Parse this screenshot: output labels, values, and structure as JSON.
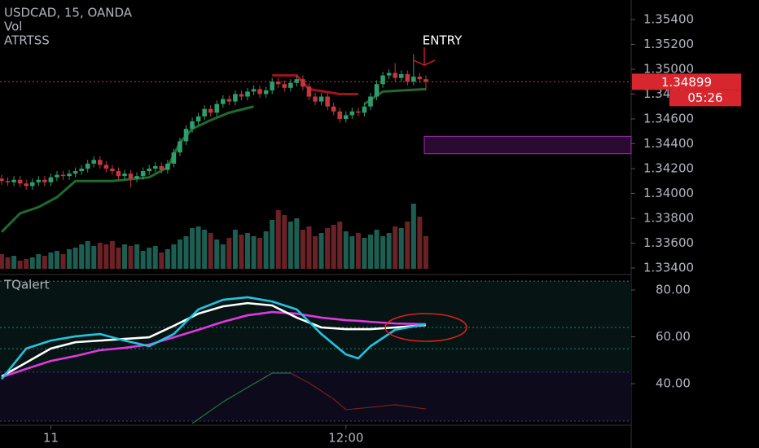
{
  "header": {
    "symbol": "USDCAD, 15, OANDA",
    "vol": "Vol",
    "atr": "ATRTSS"
  },
  "chart_data": [
    {
      "type": "candlestick",
      "annotation": "ENTRY",
      "open": [
        1.3412,
        1.341,
        1.3409,
        1.3411,
        1.3408,
        1.3406,
        1.3409,
        1.3411,
        1.3409,
        1.3413,
        1.3415,
        1.3414,
        1.3416,
        1.3418,
        1.342,
        1.3424,
        1.3427,
        1.3423,
        1.342,
        1.3418,
        1.3414,
        1.3416,
        1.3412,
        1.3414,
        1.3418,
        1.342,
        1.3422,
        1.3419,
        1.3424,
        1.3433,
        1.3442,
        1.3452,
        1.3458,
        1.3462,
        1.3468,
        1.3465,
        1.3472,
        1.3476,
        1.3474,
        1.348,
        1.3478,
        1.3482,
        1.3484,
        1.348,
        1.3483,
        1.349,
        1.3488,
        1.3485,
        1.3489,
        1.3492,
        1.3486,
        1.3478,
        1.3474,
        1.3478,
        1.347,
        1.3466,
        1.346,
        1.3463,
        1.3466,
        1.3465,
        1.347,
        1.3478,
        1.3488,
        1.3495,
        1.3497,
        1.3493,
        1.3496,
        1.349,
        1.3494,
        1.3492
      ],
      "high": [
        1.3415,
        1.3413,
        1.3414,
        1.3414,
        1.3411,
        1.3412,
        1.3414,
        1.3414,
        1.3416,
        1.3418,
        1.3418,
        1.3419,
        1.3421,
        1.3423,
        1.3427,
        1.343,
        1.343,
        1.3426,
        1.3423,
        1.3421,
        1.3419,
        1.3419,
        1.3417,
        1.3421,
        1.3423,
        1.3425,
        1.3425,
        1.3427,
        1.3436,
        1.3445,
        1.3455,
        1.3461,
        1.3465,
        1.3471,
        1.3471,
        1.3475,
        1.3479,
        1.3479,
        1.3483,
        1.3483,
        1.3485,
        1.3487,
        1.3487,
        1.3486,
        1.3493,
        1.3493,
        1.3491,
        1.3492,
        1.3495,
        1.3495,
        1.3489,
        1.3481,
        1.3481,
        1.3481,
        1.3473,
        1.3469,
        1.3466,
        1.3469,
        1.3469,
        1.3473,
        1.3481,
        1.3491,
        1.3498,
        1.35,
        1.3505,
        1.3499,
        1.3499,
        1.3512,
        1.3497,
        1.3495
      ],
      "low": [
        1.3407,
        1.3406,
        1.3406,
        1.3405,
        1.3403,
        1.3403,
        1.3406,
        1.3406,
        1.3406,
        1.341,
        1.3411,
        1.3411,
        1.3413,
        1.3415,
        1.3417,
        1.3421,
        1.342,
        1.3417,
        1.3415,
        1.3411,
        1.3411,
        1.3405,
        1.3409,
        1.3411,
        1.3415,
        1.3417,
        1.3416,
        1.3416,
        1.3421,
        1.343,
        1.3439,
        1.3449,
        1.3455,
        1.3459,
        1.3462,
        1.3462,
        1.3469,
        1.3471,
        1.3471,
        1.3475,
        1.3475,
        1.3479,
        1.3477,
        1.3477,
        1.348,
        1.3485,
        1.3482,
        1.3482,
        1.3486,
        1.3483,
        1.3475,
        1.3471,
        1.3471,
        1.3467,
        1.3463,
        1.3457,
        1.3457,
        1.346,
        1.3462,
        1.3462,
        1.3467,
        1.3475,
        1.3485,
        1.3492,
        1.349,
        1.349,
        1.3487,
        1.3487,
        1.3489,
        1.3483
      ],
      "close": [
        1.341,
        1.3409,
        1.3411,
        1.3408,
        1.3406,
        1.3409,
        1.3411,
        1.3409,
        1.3413,
        1.3415,
        1.3414,
        1.3416,
        1.3418,
        1.342,
        1.3424,
        1.3427,
        1.3423,
        1.342,
        1.3418,
        1.3414,
        1.3416,
        1.3412,
        1.3414,
        1.3418,
        1.342,
        1.3422,
        1.3419,
        1.3424,
        1.3433,
        1.3442,
        1.3452,
        1.3458,
        1.3462,
        1.3468,
        1.3465,
        1.3472,
        1.3476,
        1.3474,
        1.348,
        1.3478,
        1.3482,
        1.3484,
        1.348,
        1.3483,
        1.349,
        1.3488,
        1.3485,
        1.3489,
        1.3492,
        1.3486,
        1.3478,
        1.3474,
        1.3478,
        1.347,
        1.3466,
        1.346,
        1.3463,
        1.3466,
        1.3465,
        1.347,
        1.3478,
        1.3488,
        1.3495,
        1.3497,
        1.3493,
        1.3496,
        1.349,
        1.3494,
        1.3492,
        1.34899
      ],
      "up_color": "#2e9e6e",
      "down_color": "#c2383d",
      "ylim": [
        1.33361,
        1.35557
      ],
      "yticks": [
        {
          "value": 1.354,
          "label": "1.35400"
        },
        {
          "value": 1.352,
          "label": "1.35200"
        },
        {
          "value": 1.35,
          "label": "1.35000"
        },
        {
          "value": 1.348,
          "label": "1.34800"
        },
        {
          "value": 1.346,
          "label": "1.34600"
        },
        {
          "value": 1.344,
          "label": "1.34400"
        },
        {
          "value": 1.342,
          "label": "1.34200"
        },
        {
          "value": 1.34,
          "label": "1.34000"
        },
        {
          "value": 1.338,
          "label": "1.33800"
        },
        {
          "value": 1.336,
          "label": "1.33600"
        },
        {
          "value": 1.334,
          "label": "1.33400"
        }
      ],
      "xticks": [
        {
          "value": 8,
          "label": "11"
        },
        {
          "value": 56,
          "label": "12:00"
        }
      ],
      "last_price": 1.34899,
      "countdown": "05:26",
      "zone": [
        1.3432,
        1.3446
      ],
      "volume": {
        "values": [
          18,
          14,
          16,
          10,
          12,
          14,
          18,
          16,
          20,
          22,
          18,
          24,
          26,
          30,
          34,
          28,
          32,
          30,
          34,
          26,
          30,
          28,
          30,
          22,
          26,
          28,
          20,
          24,
          30,
          36,
          40,
          50,
          52,
          48,
          44,
          36,
          30,
          38,
          48,
          42,
          44,
          40,
          38,
          46,
          60,
          72,
          66,
          58,
          62,
          48,
          52,
          40,
          44,
          50,
          54,
          58,
          46,
          40,
          44,
          38,
          42,
          48,
          40,
          44,
          52,
          50,
          58,
          80,
          64,
          40
        ],
        "ylim": [
          0,
          100
        ]
      },
      "atr": {
        "x": [
          0,
          3,
          6,
          9,
          12,
          18,
          24,
          27,
          29,
          31,
          34,
          37,
          41,
          44,
          48,
          50,
          55,
          58,
          59,
          62,
          69
        ],
        "series": [
          {
            "color": "#1f6b2c",
            "values": [
              1.3369,
              1.3384,
              1.3389,
              1.3397,
              1.341,
              1.341,
              1.3413,
              1.3421,
              1.3441,
              1.3452,
              1.3459,
              1.3465,
              1.347,
              null,
              null,
              null,
              null,
              null,
              1.3472,
              1.3482,
              1.3484
            ]
          },
          {
            "color": "#a3131c",
            "values": [
              null,
              null,
              null,
              null,
              null,
              null,
              null,
              null,
              null,
              null,
              null,
              null,
              null,
              1.3495,
              1.3495,
              1.3484,
              1.348,
              1.348,
              null,
              null,
              null
            ]
          }
        ]
      }
    },
    {
      "type": "line",
      "title": "TQalert",
      "x": [
        0,
        4,
        8,
        12,
        16,
        20,
        24,
        28,
        32,
        36,
        40,
        44,
        48,
        52,
        56,
        58,
        60,
        64,
        69
      ],
      "series": [
        {
          "color": "#e236e2",
          "values": [
            42.8,
            46.3,
            49.7,
            51.8,
            54.3,
            55.3,
            56.7,
            59.8,
            63,
            66.4,
            69.2,
            70.6,
            69.9,
            68.2,
            67.1,
            66.8,
            66.4,
            65.7,
            65.4
          ]
        },
        {
          "color": "#ffffff",
          "values": [
            43.1,
            49,
            55,
            57.7,
            58.4,
            59.1,
            59.8,
            64.7,
            69.9,
            73,
            74.4,
            73.4,
            68.2,
            64,
            63.3,
            63.3,
            63.3,
            64,
            65
          ]
        },
        {
          "color": "#22c4de",
          "values": [
            42,
            55,
            58.4,
            60.2,
            61.2,
            58.4,
            56,
            61.2,
            71.7,
            75.8,
            76.9,
            75.1,
            71.7,
            61.2,
            52.5,
            50.8,
            56,
            63,
            65.4
          ]
        }
      ],
      "hist_x": [
        31,
        36,
        40,
        44,
        47,
        50,
        54,
        56,
        60,
        64,
        69
      ],
      "hist": [
        {
          "color": "#1e7a3c",
          "values": [
            23,
            32.2,
            38.4,
            44.5,
            44.5,
            null,
            null,
            null,
            null,
            null,
            null
          ]
        },
        {
          "color": "#7a1e1e",
          "values": [
            null,
            null,
            null,
            null,
            44.5,
            40.3,
            33.4,
            28.9,
            29.9,
            31,
            29.2
          ]
        }
      ],
      "levels": [
        83.8,
        64,
        54.9,
        44.9,
        24
      ],
      "ylim": [
        22.96,
        85.57
      ],
      "yticks": [
        {
          "value": 80,
          "label": "80.00"
        },
        {
          "value": 60,
          "label": "60.00"
        },
        {
          "value": 40,
          "label": "40.00"
        }
      ]
    }
  ]
}
